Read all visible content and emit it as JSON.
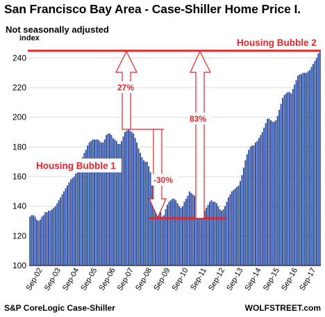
{
  "title": "San Francisco Bay Area - Case-Shiller Home Price I.",
  "subtitle": "Not seasonally adjusted",
  "source": "S&P CoreLogic Case-Shiller",
  "credit": "WOLFSTREET.com",
  "colors": {
    "bar": "#2e4f9f",
    "accent": "#e8232a",
    "grid": "#d9d9d9"
  },
  "chart_data": {
    "type": "bar",
    "ylabel": "index",
    "ylim": [
      100,
      250
    ],
    "yticks": [
      100,
      120,
      140,
      160,
      180,
      200,
      220,
      240
    ],
    "xticks": [
      "Sep-02",
      "Sep-03",
      "Sep-04",
      "Sep-05",
      "Sep-06",
      "Sep-07",
      "Sep-08",
      "Sep-09",
      "Sep-10",
      "Sep-11",
      "Sep-12",
      "Sep-13",
      "Sep-14",
      "Sep-15",
      "Sep-16",
      "Sep-17"
    ],
    "grid": true,
    "values": [
      133,
      134,
      134,
      133,
      131,
      130,
      131,
      133,
      134,
      136,
      136,
      137,
      137,
      138,
      139,
      140,
      142,
      144,
      146,
      148,
      150,
      152,
      154,
      156,
      158,
      159,
      160,
      162,
      165,
      167,
      170,
      173,
      176,
      178,
      181,
      183,
      184,
      185,
      185,
      185,
      185,
      184,
      183,
      183,
      185,
      188,
      189,
      189,
      188,
      186,
      185,
      184,
      182,
      182,
      184,
      187,
      190,
      191,
      192,
      191,
      190,
      189,
      186,
      183,
      179,
      176,
      173,
      171,
      170,
      170,
      167,
      163,
      158,
      153,
      149,
      145,
      140,
      136,
      133,
      134,
      138,
      141,
      143,
      144,
      145,
      145,
      144,
      142,
      140,
      139,
      140,
      143,
      145,
      147,
      150,
      149,
      148,
      147,
      144,
      143,
      141,
      140,
      138,
      137,
      139,
      141,
      143,
      144,
      143,
      143,
      142,
      140,
      138,
      137,
      138,
      140,
      143,
      146,
      148,
      150,
      151,
      152,
      153,
      154,
      157,
      161,
      166,
      171,
      175,
      178,
      180,
      181,
      181,
      183,
      184,
      186,
      188,
      190,
      193,
      196,
      199,
      199,
      198,
      197,
      197,
      198,
      201,
      205,
      209,
      213,
      215,
      216,
      217,
      217,
      216,
      219,
      222,
      225,
      228,
      229,
      229,
      230,
      230,
      230,
      231,
      232,
      234,
      236,
      238,
      240,
      243,
      244
    ],
    "annotations": {
      "bubble1": "Housing Bubble 1",
      "bubble2": "Housing Bubble 2",
      "up27": "27%",
      "down30": "-30%",
      "up83": "83%"
    }
  }
}
